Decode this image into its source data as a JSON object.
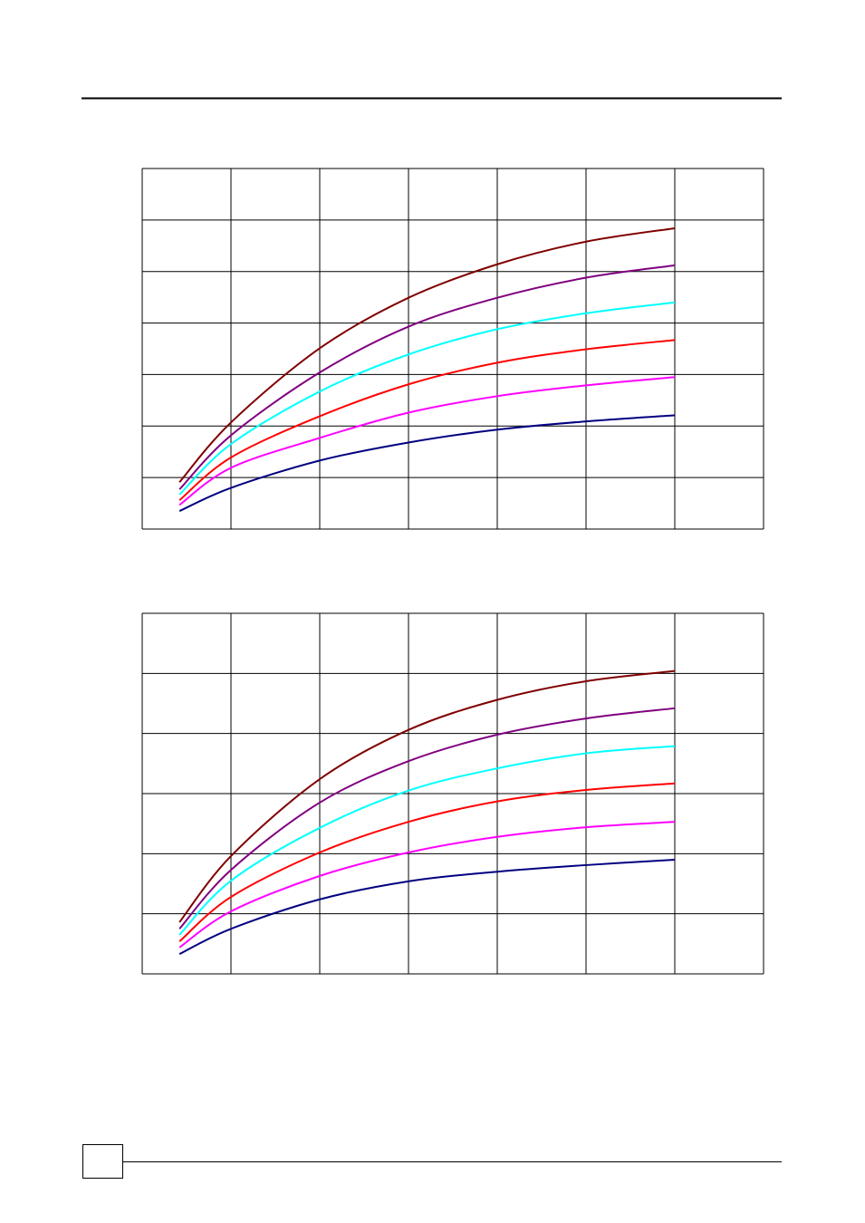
{
  "chart_data": [
    {
      "type": "line",
      "x": [
        0.42,
        1,
        2,
        3,
        4,
        5,
        6
      ],
      "xlim": [
        0,
        7
      ],
      "xticks": [
        0,
        1,
        2,
        3,
        4,
        5,
        6,
        7
      ],
      "ylim": [
        0,
        7
      ],
      "yticks": [
        0,
        1,
        2,
        3,
        4,
        5,
        6,
        7
      ],
      "grid": true,
      "series": [
        {
          "color": "#000080",
          "values": [
            0.35,
            0.8,
            1.33,
            1.68,
            1.93,
            2.09,
            2.21
          ]
        },
        {
          "color": "#ff00ff",
          "values": [
            0.47,
            1.19,
            1.77,
            2.26,
            2.58,
            2.79,
            2.95
          ]
        },
        {
          "color": "#ff0000",
          "values": [
            0.56,
            1.39,
            2.19,
            2.81,
            3.23,
            3.49,
            3.67
          ]
        },
        {
          "color": "#00ffff",
          "values": [
            0.67,
            1.65,
            2.67,
            3.39,
            3.88,
            4.19,
            4.4
          ]
        },
        {
          "color": "#800080",
          "values": [
            0.77,
            1.82,
            3.04,
            3.93,
            4.49,
            4.88,
            5.12
          ]
        },
        {
          "color": "#800000",
          "values": [
            0.91,
            2.07,
            3.51,
            4.49,
            5.14,
            5.58,
            5.84
          ]
        }
      ]
    },
    {
      "type": "line",
      "x": [
        0.42,
        1,
        2,
        3,
        4,
        5,
        6
      ],
      "xlim": [
        0,
        7
      ],
      "xticks": [
        0,
        1,
        2,
        3,
        4,
        5,
        6,
        7
      ],
      "ylim": [
        0,
        6
      ],
      "yticks": [
        0,
        1,
        2,
        3,
        4,
        5,
        6
      ],
      "grid": true,
      "series": [
        {
          "color": "#000080",
          "values": [
            0.33,
            0.75,
            1.24,
            1.54,
            1.7,
            1.81,
            1.9
          ]
        },
        {
          "color": "#ff00ff",
          "values": [
            0.44,
            1.04,
            1.63,
            2.02,
            2.28,
            2.44,
            2.53
          ]
        },
        {
          "color": "#ff0000",
          "values": [
            0.54,
            1.28,
            2.02,
            2.53,
            2.87,
            3.06,
            3.17
          ]
        },
        {
          "color": "#00ffff",
          "values": [
            0.65,
            1.55,
            2.43,
            3.05,
            3.42,
            3.67,
            3.79
          ]
        },
        {
          "color": "#800080",
          "values": [
            0.75,
            1.73,
            2.85,
            3.54,
            3.98,
            4.25,
            4.42
          ]
        },
        {
          "color": "#800000",
          "values": [
            0.86,
            1.96,
            3.24,
            4.06,
            4.56,
            4.87,
            5.04
          ]
        }
      ]
    }
  ]
}
